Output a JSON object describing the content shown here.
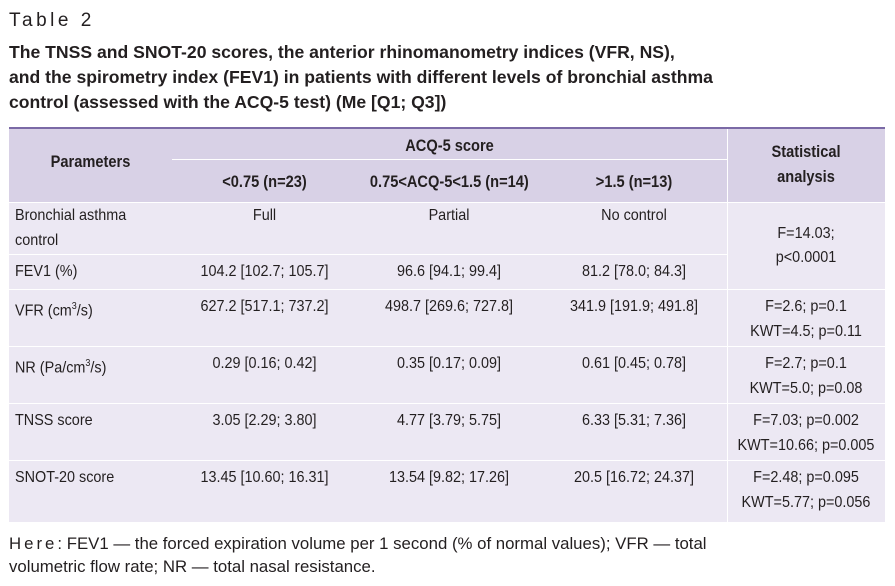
{
  "table_label": "Table 2",
  "caption_lines": [
    "The TNSS and SNOT-20 scores, the anterior rhinomanometry indices (VFR, NS),",
    "and the spirometry index (FEV1) in patients with different levels of bronchial asthma",
    "control (assessed with the ACQ-5 test) (Me [Q1; Q3])"
  ],
  "header": {
    "parameters": "Parameters",
    "acq_group": "ACQ-5 score",
    "col1": "<0.75 (n=23)",
    "col2": "0.75<ACQ-5<1.5 (n=14)",
    "col3": ">1.5 (n=13)",
    "stat_line1": "Statistical",
    "stat_line2": "analysis"
  },
  "rows": [
    {
      "param": "Bronchial asthma",
      "param2": "control",
      "v1": "Full",
      "v2": "Partial",
      "v3": "No control"
    },
    {
      "param": "FEV1 (%)",
      "v1": "104.2 [102.7; 105.7]",
      "v2": "96.6 [94.1; 99.4]",
      "v3": "81.2 [78.0; 84.3]"
    },
    {
      "param": "VFR (cm",
      "param_sup": "3",
      "param_tail": "/s)",
      "v1": "627.2 [517.1; 737.2]",
      "v2": "498.7 [269.6; 727.8]",
      "v3": "341.9 [191.9; 491.8]",
      "s1": "F=2.6; p=0.1",
      "s2": "KWT=4.5; p=0.11"
    },
    {
      "param": "NR (Pa/cm",
      "param_sup": "3",
      "param_tail": "/s)",
      "v1": "0.29 [0.16; 0.42]",
      "v2": "0.35 [0.17; 0.09]",
      "v3": "0.61 [0.45; 0.78]",
      "s1": "F=2.7; p=0.1",
      "s2": "KWT=5.0; p=0.08"
    },
    {
      "param": "TNSS score",
      "v1": "3.05 [2.29; 3.80]",
      "v2": "4.77 [3.79; 5.75]",
      "v3": "6.33 [5.31; 7.36]",
      "s1": "F=7.03; p=0.002",
      "s2": "KWT=10.66; p=0.005"
    },
    {
      "param": "SNOT-20 score",
      "v1": "13.45 [10.60; 16.31]",
      "v2": "13.54 [9.82; 17.26]",
      "v3": "20.5 [16.72; 24.37]",
      "s1": "F=2.48; p=0.095",
      "s2": "KWT=5.77; p=0.056"
    }
  ],
  "merged_stat": {
    "s1": "F=14.03;",
    "s2": "p<0.0001"
  },
  "footnote": {
    "lead": "Here",
    "line1_rest": ": FEV1 — the forced expiration volume per 1 second (% of normal values); VFR — total",
    "line2": "volumetric flow rate; NR — total nasal resistance."
  }
}
